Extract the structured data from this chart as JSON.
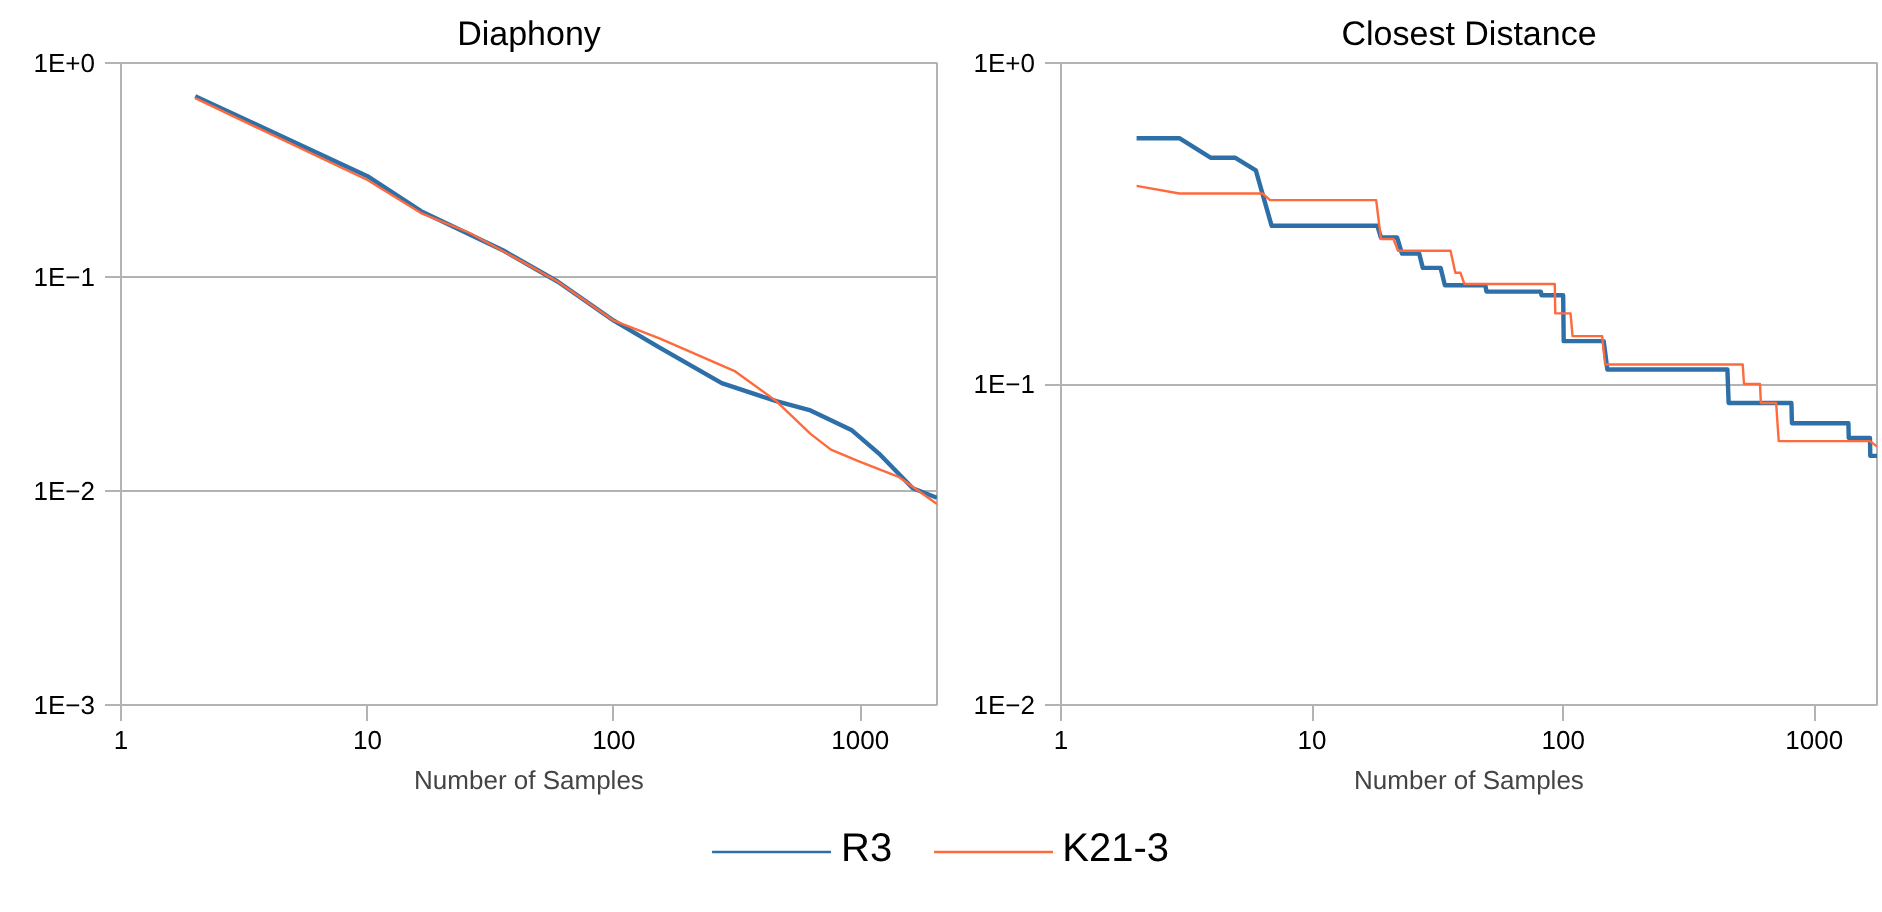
{
  "chart_data": [
    {
      "type": "line",
      "title": "Diaphony",
      "xlabel": "Number of Samples",
      "log": "xy",
      "grid": "y",
      "legend": "bottom",
      "marker": "none",
      "line_style": "solid",
      "xlim": [
        1,
        2048
      ],
      "ylim": [
        0.001,
        1
      ],
      "xticks": [
        1,
        10,
        100,
        1000
      ],
      "yticks": [
        {
          "value": 1,
          "label": "1E+0"
        },
        {
          "value": 0.1,
          "label": "1E−1"
        },
        {
          "value": 0.01,
          "label": "1E−2"
        },
        {
          "value": 0.001,
          "label": "1E−3"
        }
      ],
      "series": [
        {
          "name": "R3",
          "color": "#2e6fa7",
          "x": [
            2,
            10,
            16.5,
            35.6,
            59.3,
            100,
            154,
            274,
            456,
            628,
            920,
            1188,
            1633,
            2048
          ],
          "values": [
            0.7,
            0.296,
            0.203,
            0.133,
            0.095,
            0.0625,
            0.0466,
            0.0319,
            0.0263,
            0.0238,
            0.0193,
            0.015,
            0.0103,
            0.0093
          ]
        },
        {
          "name": "K21-3",
          "color": "#ff6a3d",
          "x": [
            2,
            10,
            16.5,
            25.9,
            43,
            59.3,
            100,
            154,
            311,
            456,
            628,
            760,
            982,
            1439,
            2048
          ],
          "values": [
            0.685,
            0.284,
            0.199,
            0.161,
            0.117,
            0.095,
            0.0625,
            0.0515,
            0.0362,
            0.0263,
            0.0185,
            0.0156,
            0.0138,
            0.0116,
            0.0087
          ]
        }
      ]
    },
    {
      "type": "line",
      "title": "Closest Distance",
      "xlabel": "Number of Samples",
      "log": "xy",
      "grid": "y",
      "marker": "none",
      "line_style": "solid",
      "xlim": [
        1,
        1778
      ],
      "ylim": [
        0.01,
        1
      ],
      "xticks": [
        1,
        10,
        100,
        1000
      ],
      "yticks": [
        {
          "value": 1,
          "label": "1E+0"
        },
        {
          "value": 0.1,
          "label": "1E−1"
        },
        {
          "value": 0.01,
          "label": "1E−2"
        }
      ],
      "series": [
        {
          "name": "R3",
          "color": "#2e6fa7",
          "x": [
            2,
            2.96,
            3.94,
            4.93,
            5.97,
            6.9,
            18.2,
            18.8,
            21.8,
            22.8,
            26.7,
            27.6,
            32.5,
            33.8,
            49,
            49.5,
            81.5,
            82,
            100,
            100.5,
            145,
            150,
            451,
            456,
            811,
            815,
            1368,
            1372,
            1667,
            1672,
            1778
          ],
          "values": [
            0.583,
            0.583,
            0.507,
            0.507,
            0.463,
            0.311,
            0.311,
            0.286,
            0.286,
            0.255,
            0.255,
            0.23,
            0.23,
            0.203,
            0.203,
            0.194,
            0.194,
            0.189,
            0.189,
            0.136,
            0.136,
            0.111,
            0.111,
            0.0873,
            0.0873,
            0.0755,
            0.0755,
            0.0679,
            0.0679,
            0.0597,
            0.0597
          ]
        },
        {
          "name": "K21-3",
          "color": "#ff6a3d",
          "x": [
            2,
            2.96,
            6.36,
            6.8,
            18,
            18.8,
            21.1,
            22,
            35.6,
            37.2,
            39,
            40.4,
            92.6,
            93,
            107,
            109,
            143,
            147,
            519,
            525,
            608,
            613,
            705,
            722,
            1667,
            1778
          ],
          "values": [
            0.414,
            0.392,
            0.392,
            0.374,
            0.374,
            0.283,
            0.283,
            0.26,
            0.26,
            0.222,
            0.222,
            0.205,
            0.205,
            0.166,
            0.166,
            0.141,
            0.141,
            0.115,
            0.115,
            0.1,
            0.1,
            0.0873,
            0.0873,
            0.0664,
            0.0664,
            0.0638
          ]
        }
      ]
    }
  ]
}
